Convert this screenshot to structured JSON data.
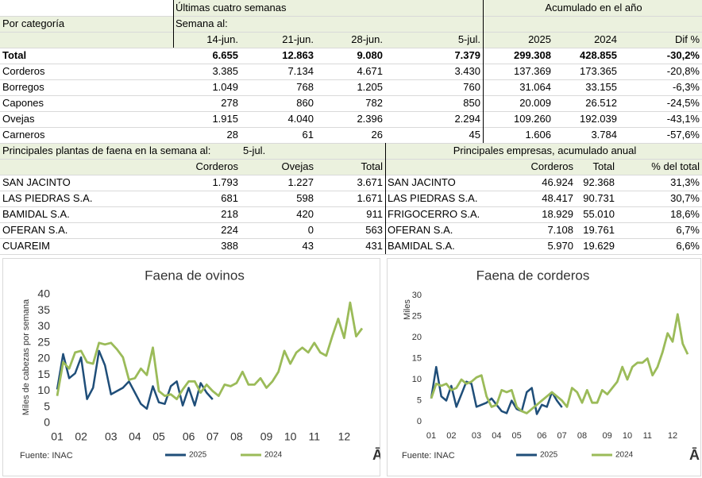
{
  "table1": {
    "header_left": "Últimas cuatro semanas",
    "header_right": "Acumulado en el año",
    "row_label_header": "Por categoría",
    "week_label": "Semana al:",
    "columns": [
      "14-jun.",
      "21-jun.",
      "28-jun.",
      "5-jul.",
      "2025",
      "2024",
      "Dif %"
    ],
    "rows": [
      [
        "Total",
        "6.655",
        "12.863",
        "9.080",
        "7.379",
        "299.308",
        "428.855",
        "-30,2%"
      ],
      [
        "Corderos",
        "3.385",
        "7.134",
        "4.671",
        "3.430",
        "137.369",
        "173.365",
        "-20,8%"
      ],
      [
        "Borregos",
        "1.049",
        "768",
        "1.205",
        "760",
        "31.064",
        "33.155",
        "-6,3%"
      ],
      [
        "Capones",
        "278",
        "860",
        "782",
        "850",
        "20.009",
        "26.512",
        "-24,5%"
      ],
      [
        "Ovejas",
        "1.915",
        "4.040",
        "2.396",
        "2.294",
        "109.260",
        "192.039",
        "-43,1%"
      ],
      [
        "Carneros",
        "28",
        "61",
        "26",
        "45",
        "1.606",
        "3.784",
        "-57,6%"
      ]
    ]
  },
  "table2": {
    "title": "Principales plantas de faena en la semana al:",
    "date": "5-jul.",
    "columns": [
      "Corderos",
      "Ovejas",
      "Total"
    ],
    "rows": [
      [
        "SAN JACINTO",
        "1.793",
        "1.227",
        "3.671"
      ],
      [
        "LAS PIEDRAS S.A.",
        "681",
        "598",
        "1.671"
      ],
      [
        "BAMIDAL S.A.",
        "218",
        "420",
        "911"
      ],
      [
        "OFERAN S.A.",
        "224",
        "0",
        "563"
      ],
      [
        "CUAREIM",
        "388",
        "43",
        "431"
      ]
    ]
  },
  "table3": {
    "title": "Principales empresas, acumulado anual",
    "columns": [
      "Corderos",
      "Total",
      "% del total"
    ],
    "rows": [
      [
        "SAN JACINTO",
        "46.924",
        "92.368",
        "31,3%"
      ],
      [
        "LAS PIEDRAS S.A.",
        "48.417",
        "90.731",
        "30,7%"
      ],
      [
        "FRIGOCERRO S.A.",
        "18.929",
        "55.010",
        "18,6%"
      ],
      [
        "OFERAN S.A.",
        "7.108",
        "19.761",
        "6,7%"
      ],
      [
        "BAMIDAL S.A.",
        "5.970",
        "19.629",
        "6,6%"
      ]
    ]
  },
  "chart_data": [
    {
      "type": "line",
      "title": "Faena de ovinos",
      "y_label": "Miles de cabezas por semana",
      "source": "Fuente:  INAC",
      "logo": "Ā",
      "categories": [
        "01",
        null,
        null,
        null,
        "02",
        null,
        null,
        null,
        null,
        "03",
        null,
        null,
        null,
        "04",
        null,
        null,
        null,
        "05",
        null,
        null,
        null,
        null,
        "06",
        null,
        null,
        null,
        "07",
        null,
        null,
        null,
        "08",
        null,
        null,
        null,
        null,
        "09",
        null,
        null,
        null,
        "10",
        null,
        null,
        null,
        "11",
        null,
        null,
        null,
        null,
        "12",
        null,
        null,
        null
      ],
      "series": [
        {
          "name": "2025",
          "color": "#1f4e79",
          "values": [
            10.5,
            21.5,
            14,
            15.5,
            20.5,
            7.5,
            11,
            22.5,
            18,
            9,
            10,
            11,
            13,
            9.5,
            6,
            4.5,
            11.5,
            6.5,
            6,
            11.5,
            13,
            5.5,
            11,
            5.5,
            12.5,
            9.5,
            7.4,
            null,
            null,
            null,
            null,
            null,
            null,
            null,
            null,
            null,
            null,
            null,
            null,
            null,
            null,
            null,
            null,
            null,
            null,
            null,
            null,
            null,
            null,
            null,
            null,
            null
          ]
        },
        {
          "name": "2024",
          "color": "#9bbb59",
          "values": [
            8.5,
            19,
            17,
            22,
            22.5,
            19,
            18.5,
            25,
            24.5,
            25,
            23,
            20.5,
            13.5,
            14,
            17,
            15,
            23.5,
            10,
            8.5,
            9,
            7.5,
            10.5,
            13,
            13,
            9.5,
            12,
            10,
            8.5,
            12,
            11.5,
            12.5,
            16,
            12,
            12,
            14,
            11,
            13,
            16,
            22.5,
            18.5,
            22,
            23.5,
            22,
            25,
            22,
            21,
            27,
            32.5,
            26.5,
            37.5,
            27,
            29.5
          ]
        }
      ],
      "ylim": [
        0,
        40
      ],
      "yticks": [
        0,
        5,
        10,
        15,
        20,
        25,
        30,
        35,
        40
      ],
      "grid": false,
      "legend": "bottom"
    },
    {
      "type": "line",
      "title": "Faena de corderos",
      "y_label": "Miles",
      "source": "Fuente:  INAC",
      "logo": "Ā",
      "categories": [
        "01",
        null,
        null,
        null,
        "02",
        null,
        null,
        null,
        null,
        "03",
        null,
        null,
        null,
        "04",
        null,
        null,
        null,
        "05",
        null,
        null,
        null,
        null,
        "06",
        null,
        null,
        null,
        "07",
        null,
        null,
        null,
        "08",
        null,
        null,
        null,
        null,
        "09",
        null,
        null,
        null,
        "10",
        null,
        null,
        null,
        "11",
        null,
        null,
        null,
        null,
        "12",
        null,
        null,
        null
      ],
      "series": [
        {
          "name": "2025",
          "color": "#1f4e79",
          "values": [
            5.5,
            13,
            6,
            5,
            8.5,
            3.5,
            6.5,
            9.5,
            9,
            3.5,
            4,
            4.5,
            5.5,
            4,
            2.5,
            2,
            5,
            3,
            2.5,
            7,
            8,
            1.8,
            4,
            3.5,
            7,
            5,
            3.4,
            null,
            null,
            null,
            null,
            null,
            null,
            null,
            null,
            null,
            null,
            null,
            null,
            null,
            null,
            null,
            null,
            null,
            null,
            null,
            null,
            null,
            null,
            null,
            null,
            null
          ]
        },
        {
          "name": "2024",
          "color": "#9bbb59",
          "values": [
            5.5,
            9,
            8.5,
            9,
            7.5,
            8,
            10,
            9,
            9.5,
            10.5,
            11,
            6,
            3.5,
            4,
            7.5,
            7,
            7.5,
            3.5,
            2.5,
            2,
            3,
            4,
            5,
            6,
            7,
            6,
            5,
            3.5,
            8,
            7,
            4.5,
            7.5,
            4.5,
            4.5,
            7.5,
            6.5,
            8,
            9.5,
            13,
            10,
            13,
            14,
            14,
            15,
            11,
            13,
            16.5,
            21,
            19,
            25.5,
            18.5,
            16
          ]
        }
      ],
      "ylim": [
        0,
        30
      ],
      "yticks": [
        0,
        5,
        10,
        15,
        20,
        25,
        30
      ],
      "grid": false,
      "legend": "bottom"
    }
  ]
}
